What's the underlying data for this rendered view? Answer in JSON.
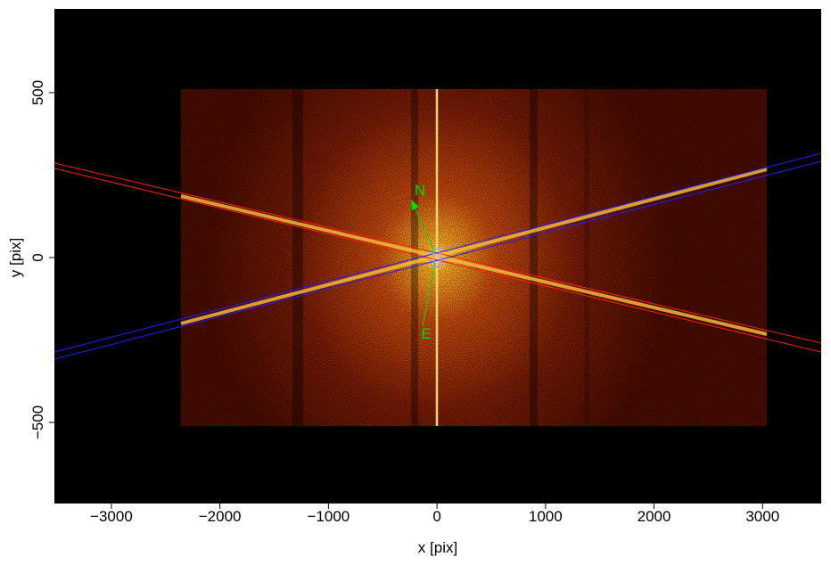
{
  "chart_data": {
    "type": "image",
    "xlabel": "x [pix]",
    "ylabel": "y [pix]",
    "xlim": [
      -3525,
      3540
    ],
    "ylim": [
      -746,
      754
    ],
    "xticks": [
      {
        "value": -3000,
        "label": "−3000"
      },
      {
        "value": -2000,
        "label": "−2000"
      },
      {
        "value": -1000,
        "label": "−1000"
      },
      0,
      1000,
      2000,
      3000
    ],
    "yticks": [
      {
        "value": -500,
        "label": "−500"
      },
      0,
      500
    ],
    "annotations": [
      "N",
      "E"
    ]
  }
}
